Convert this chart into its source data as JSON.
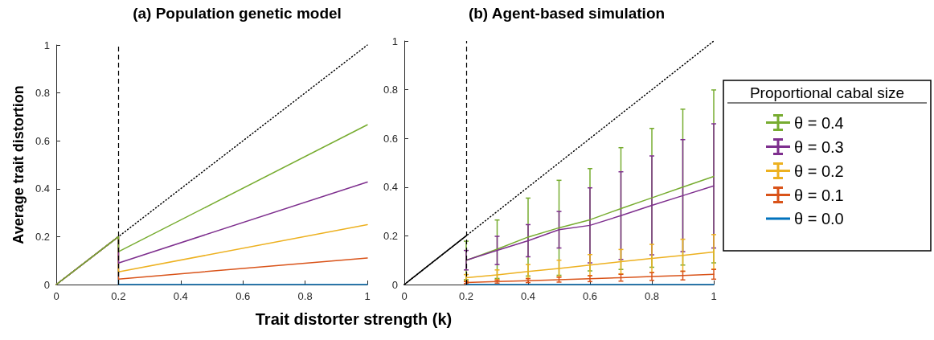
{
  "chart_data": [
    {
      "type": "line",
      "title": "(a) Population genetic model",
      "xlabel": "Trait distorter strength (k)",
      "ylabel": "Average trait distortion",
      "xlim": [
        0,
        1
      ],
      "ylim": [
        0,
        1
      ],
      "xticks": [
        0,
        0.2,
        0.4,
        0.6,
        0.8,
        1
      ],
      "yticks": [
        0,
        0.2,
        0.4,
        0.6,
        0.8,
        1
      ],
      "grid": false,
      "marker": "none",
      "line_style": "solid",
      "ref_lines": [
        {
          "axis": "x",
          "value": 0.2,
          "color": "#000000",
          "line_style": "dashed"
        }
      ],
      "series": [
        {
          "color": "#000000",
          "line_style": "dotted",
          "x": [
            0,
            1
          ],
          "values": [
            0,
            1
          ]
        },
        {
          "color": "#0072bd",
          "x": [
            0,
            0.2,
            0.2,
            1
          ],
          "values": [
            0,
            0.2,
            0,
            0
          ]
        },
        {
          "color": "#d95319",
          "x": [
            0,
            0.2,
            0.2,
            1
          ],
          "values": [
            0,
            0.2,
            0.023,
            0.111
          ]
        },
        {
          "color": "#edb120",
          "x": [
            0,
            0.2,
            0.2,
            1
          ],
          "values": [
            0,
            0.2,
            0.053,
            0.25
          ]
        },
        {
          "color": "#7e2f8e",
          "x": [
            0,
            0.2,
            0.2,
            1
          ],
          "values": [
            0,
            0.2,
            0.09,
            0.428
          ]
        },
        {
          "color": "#77ac30",
          "x": [
            0,
            0.2,
            0.2,
            1
          ],
          "values": [
            0,
            0.2,
            0.137,
            0.667
          ]
        }
      ]
    },
    {
      "type": "line",
      "title": "(b) Agent-based simulation",
      "legend_title": "Proportional cabal size",
      "legend": "right",
      "xlim": [
        0,
        1
      ],
      "ylim": [
        0,
        1
      ],
      "xticks": [
        0,
        0.2,
        0.4,
        0.6,
        0.8,
        1
      ],
      "yticks": [
        0,
        0.2,
        0.4,
        0.6,
        0.8,
        1
      ],
      "grid": false,
      "marker": "none",
      "line_style": "solid",
      "x": [
        0.2,
        0.3,
        0.4,
        0.5,
        0.6,
        0.7,
        0.8,
        0.9,
        1
      ],
      "ref_lines": [
        {
          "axis": "x",
          "value": 0.2,
          "color": "#000000",
          "line_style": "dashed"
        }
      ],
      "series": [
        {
          "color": "#000000",
          "line_style": "dotted",
          "x": [
            0,
            1
          ],
          "values": [
            0,
            1
          ]
        },
        {
          "color": "#000000",
          "x": [
            0,
            0.1,
            0.2
          ],
          "values": [
            0,
            0.1,
            0.2
          ]
        },
        {
          "name": "θ = 0.4",
          "color": "#77ac30",
          "values": [
            0.099,
            0.145,
            0.195,
            0.233,
            0.266,
            0.312,
            0.356,
            0.4,
            0.444
          ],
          "errors": [
            0.079,
            0.12,
            0.16,
            0.195,
            0.21,
            0.25,
            0.285,
            0.32,
            0.355
          ]
        },
        {
          "name": "θ = 0.3",
          "color": "#7e2f8e",
          "values": [
            0.1,
            0.14,
            0.18,
            0.225,
            0.243,
            0.283,
            0.325,
            0.365,
            0.405
          ],
          "errors": [
            0.04,
            0.058,
            0.066,
            0.075,
            0.154,
            0.18,
            0.203,
            0.23,
            0.255
          ]
        },
        {
          "name": "θ = 0.2",
          "color": "#edb120",
          "values": [
            0.028,
            0.04,
            0.054,
            0.066,
            0.08,
            0.094,
            0.107,
            0.12,
            0.134
          ],
          "errors": [
            0.013,
            0.02,
            0.028,
            0.034,
            0.043,
            0.05,
            0.058,
            0.066,
            0.071
          ]
        },
        {
          "name": "θ = 0.1",
          "color": "#d95319",
          "values": [
            0.008,
            0.012,
            0.016,
            0.02,
            0.024,
            0.028,
            0.033,
            0.037,
            0.042
          ],
          "errors": [
            0.004,
            0.006,
            0.008,
            0.01,
            0.012,
            0.014,
            0.016,
            0.018,
            0.02
          ]
        },
        {
          "name": "θ = 0.0",
          "color": "#0072bd",
          "values": [
            0,
            0,
            0,
            0,
            0,
            0,
            0,
            0,
            0
          ]
        }
      ]
    }
  ]
}
